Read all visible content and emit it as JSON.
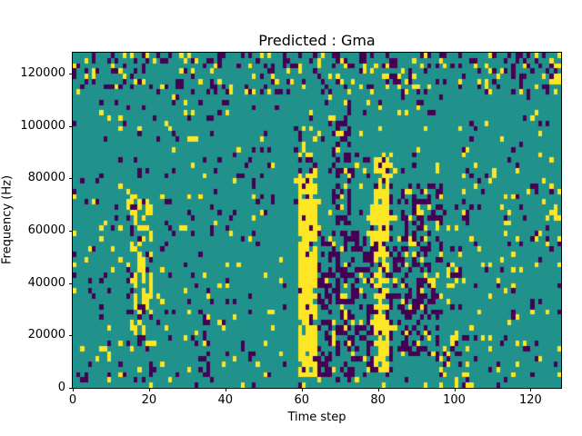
{
  "chart_data": {
    "type": "heatmap",
    "title": "Predicted : Gma",
    "xlabel": "Time step",
    "ylabel": "Frequency (Hz)",
    "x_range": [
      0,
      128
    ],
    "y_range": [
      0,
      128000
    ],
    "xticks": [
      0,
      20,
      40,
      60,
      80,
      100,
      120
    ],
    "xtick_labels": [
      "0",
      "20",
      "40",
      "60",
      "80",
      "100",
      "120"
    ],
    "yticks": [
      0,
      20000,
      40000,
      60000,
      80000,
      100000,
      120000
    ],
    "ytick_labels": [
      "0",
      "20000",
      "40000",
      "60000",
      "80000",
      "100000",
      "120000"
    ],
    "legend": "none",
    "grid": {
      "cols": 128,
      "rows": 64
    },
    "colors": {
      "low": "#440154",
      "mid": "#21918c",
      "high": "#fde725",
      "background": "#ffffff",
      "axis": "#000000"
    },
    "value_classes": {
      "low": "purple (-1)",
      "mid": "teal (0)",
      "high": "yellow (1)"
    },
    "seed": 42,
    "base": {
      "yellow": 0.04,
      "purple": 0.04
    },
    "features": [
      {
        "x": [
          14,
          21
        ],
        "f": [
          15000,
          75000
        ],
        "y": 0.28,
        "p": 0.12
      },
      {
        "x": [
          16,
          19
        ],
        "f": [
          30000,
          72000
        ],
        "y": 0.5,
        "p": 0.1
      },
      {
        "x": [
          33,
          36
        ],
        "f": [
          5000,
          30000
        ],
        "y": 0.05,
        "p": 0.3
      },
      {
        "x": [
          59,
          64
        ],
        "f": [
          4000,
          82000
        ],
        "y": 0.8,
        "p": 0.08
      },
      {
        "x": [
          59,
          64
        ],
        "f": [
          82000,
          100000
        ],
        "y": 0.3,
        "p": 0.15
      },
      {
        "x": [
          64,
          79
        ],
        "f": [
          4000,
          60000
        ],
        "y": 0.08,
        "p": 0.42
      },
      {
        "x": [
          68,
          73
        ],
        "f": [
          60000,
          112000
        ],
        "y": 0.06,
        "p": 0.4
      },
      {
        "x": [
          79,
          83
        ],
        "f": [
          6000,
          88000
        ],
        "y": 0.75,
        "p": 0.12
      },
      {
        "x": [
          78,
          86
        ],
        "f": [
          55000,
          70000
        ],
        "y": 0.85,
        "p": 0.06
      },
      {
        "x": [
          83,
          97
        ],
        "f": [
          12000,
          78000
        ],
        "y": 0.08,
        "p": 0.38
      },
      {
        "x": [
          0,
          128
        ],
        "f": [
          112000,
          128000
        ],
        "y": 0.09,
        "p": 0.16
      },
      {
        "x": [
          96,
          104
        ],
        "f": [
          0,
          22000
        ],
        "y": 0.22,
        "p": 0.16
      },
      {
        "x": [
          98,
          102
        ],
        "f": [
          38000,
          54000
        ],
        "y": 0.25,
        "p": 0.18
      },
      {
        "x": [
          124,
          128
        ],
        "f": [
          55000,
          70000
        ],
        "y": 0.3,
        "p": 0.08
      },
      {
        "x": [
          125,
          128
        ],
        "f": [
          114000,
          128000
        ],
        "y": 0.4,
        "p": 0.12
      }
    ]
  }
}
